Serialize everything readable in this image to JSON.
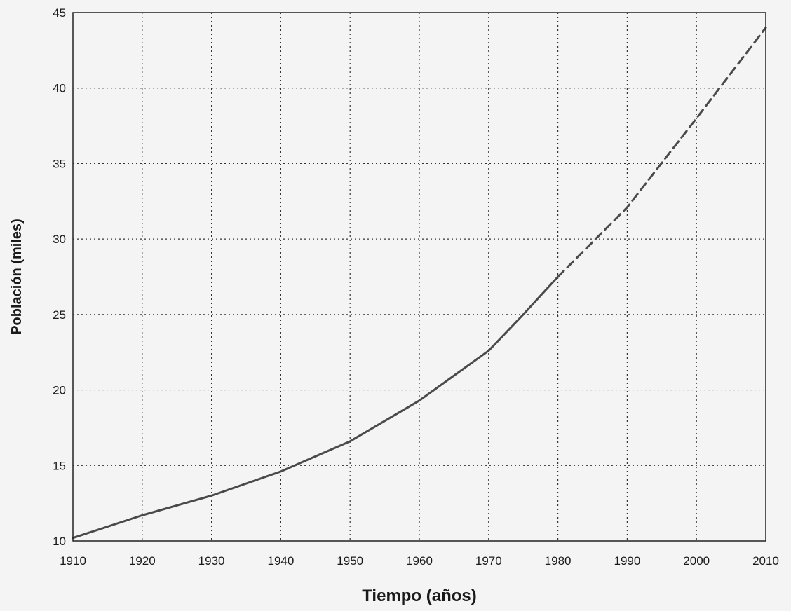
{
  "chart_data": {
    "type": "line",
    "xlabel": "Tiempo (años)",
    "ylabel": "Población (miles)",
    "xlim": [
      1910,
      2010
    ],
    "ylim": [
      10,
      45
    ],
    "x_ticks": [
      1910,
      1920,
      1930,
      1940,
      1950,
      1960,
      1970,
      1980,
      1990,
      2000,
      2010
    ],
    "y_ticks": [
      10,
      15,
      20,
      25,
      30,
      35,
      40,
      45
    ],
    "grid": true,
    "grid_style": "dotted",
    "series": [
      {
        "style": "solid",
        "color": "#4a4a4a",
        "x": [
          1910,
          1920,
          1930,
          1940,
          1950,
          1960,
          1970,
          1975,
          1980
        ],
        "y": [
          10.2,
          11.7,
          13.0,
          14.6,
          16.6,
          19.3,
          22.6,
          25.0,
          27.5
        ]
      },
      {
        "style": "dashed",
        "color": "#4a4a4a",
        "x": [
          1980,
          1990,
          2000,
          2010
        ],
        "y": [
          27.5,
          32.1,
          38.0,
          44.0
        ]
      }
    ]
  }
}
